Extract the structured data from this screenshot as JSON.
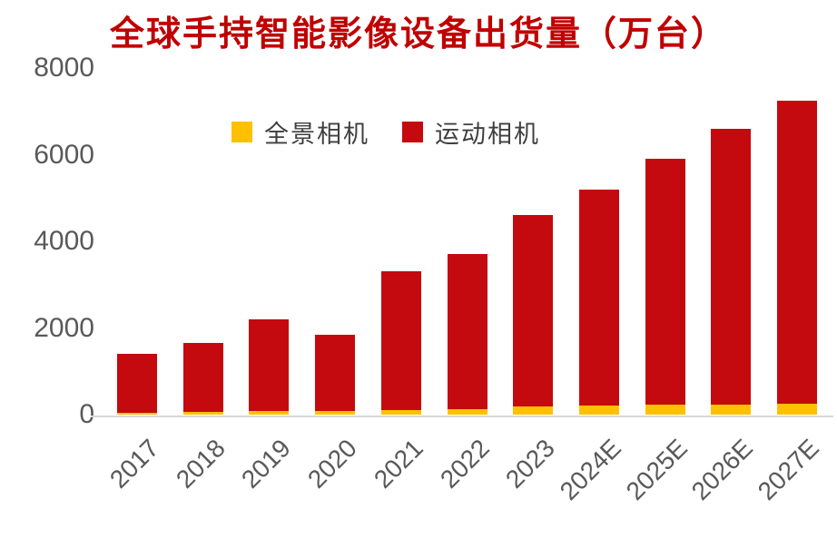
{
  "title": "全球手持智能影像设备出货量（万台）",
  "colors": {
    "title": "#c00000",
    "panoramic": "#ffc000",
    "action": "#c40a0e",
    "axis_label": "#595959",
    "legend_text": "#3f3f3f",
    "axis_line": "#d8d8d8",
    "background": "#ffffff"
  },
  "chart_data": {
    "type": "bar",
    "stacked": true,
    "title": "全球手持智能影像设备出货量（万台）",
    "unit": "万台",
    "categories": [
      "2017",
      "2018",
      "2019",
      "2020",
      "2021",
      "2022",
      "2023",
      "2024E",
      "2025E",
      "2026E",
      "2027E"
    ],
    "series": [
      {
        "name": "全景相机",
        "color": "#ffc000",
        "values": [
          50,
          60,
          80,
          90,
          105,
          120,
          190,
          210,
          230,
          240,
          250
        ]
      },
      {
        "name": "运动相机",
        "color": "#c40a0e",
        "values": [
          1350,
          1590,
          2120,
          1760,
          3195,
          3580,
          4410,
          4990,
          5670,
          6360,
          7000
        ]
      }
    ],
    "totals": [
      1400,
      1650,
      2200,
      1850,
      3300,
      3700,
      4600,
      5200,
      5900,
      6600,
      7250
    ],
    "ylim": [
      0,
      8000
    ],
    "yticks": [
      0,
      2000,
      4000,
      6000,
      8000
    ],
    "grid": false,
    "legend_position": "top-left-inside",
    "x_label_rotation_deg": -45
  }
}
